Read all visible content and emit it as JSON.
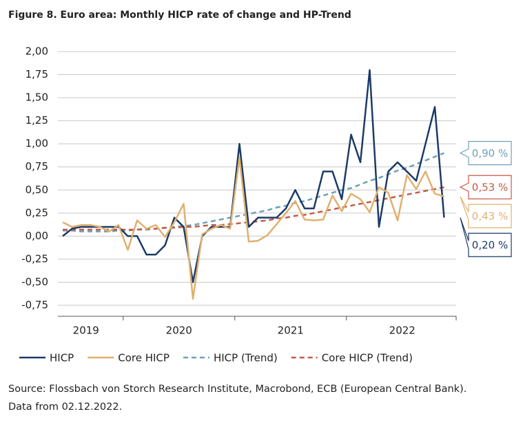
{
  "chart_data": {
    "type": "line",
    "title": "Figure 8. Euro area: Monthly HICP rate of change and HP-Trend",
    "source": "Source: Flossbach von Storch Research Institute, Macrobond, ECB (European Central Bank).",
    "note": "Data from 02.12.2022.",
    "categories": [
      null,
      null,
      null,
      "2019",
      null,
      null,
      null,
      null,
      null,
      null,
      null,
      null,
      null,
      "2020",
      null,
      null,
      null,
      null,
      null,
      null,
      null,
      null,
      null,
      null,
      null,
      "2021",
      null,
      null,
      null,
      null,
      null,
      null,
      null,
      null,
      null,
      null,
      null,
      "2022",
      null,
      null,
      null,
      null
    ],
    "ylim": [
      -0.75,
      2.0
    ],
    "yticks": [
      {
        "value": -0.75,
        "label": "-0,75"
      },
      {
        "value": -0.5,
        "label": "-0,50"
      },
      {
        "value": -0.25,
        "label": "-0,25"
      },
      {
        "value": 0,
        "label": "0,00"
      },
      {
        "value": 0.25,
        "label": "0,25"
      },
      {
        "value": 0.5,
        "label": "0,50"
      },
      {
        "value": 0.75,
        "label": "0,75"
      },
      {
        "value": 1.0,
        "label": "1,00"
      },
      {
        "value": 1.25,
        "label": "1,25"
      },
      {
        "value": 1.5,
        "label": "1,50"
      },
      {
        "value": 1.75,
        "label": "1,75"
      },
      {
        "value": 2.0,
        "label": "2,00"
      }
    ],
    "grid": true,
    "series": [
      {
        "name": "HICP",
        "color": "#1b3a66",
        "dashed": false,
        "end_label": "0,20 %",
        "values": [
          0.0,
          0.08,
          0.1,
          0.1,
          0.1,
          0.1,
          0.1,
          0.0,
          0.0,
          -0.2,
          -0.2,
          -0.1,
          0.2,
          0.1,
          -0.5,
          0.0,
          0.1,
          0.1,
          0.1,
          1.0,
          0.1,
          0.2,
          0.2,
          0.2,
          0.3,
          0.5,
          0.3,
          0.3,
          0.7,
          0.7,
          0.4,
          1.1,
          0.8,
          1.8,
          0.1,
          0.7,
          0.8,
          0.7,
          0.6,
          1.0,
          1.4,
          0.2
        ]
      },
      {
        "name": "Core HICP",
        "color": "#e0b06f",
        "dashed": false,
        "end_label": "0,43 %",
        "values": [
          0.15,
          0.1,
          0.12,
          0.12,
          0.1,
          0.05,
          0.12,
          -0.15,
          0.17,
          0.08,
          0.12,
          -0.01,
          0.15,
          0.35,
          -0.68,
          0.02,
          0.08,
          0.12,
          0.08,
          0.85,
          -0.06,
          -0.05,
          0.01,
          0.13,
          0.25,
          0.38,
          0.18,
          0.17,
          0.18,
          0.44,
          0.27,
          0.46,
          0.4,
          0.26,
          0.53,
          0.47,
          0.17,
          0.66,
          0.51,
          0.7,
          0.46,
          0.43
        ]
      },
      {
        "name": "HICP (Trend)",
        "color": "#6f9fb8",
        "dashed": true,
        "end_label": "0,90 %",
        "values": [
          0.06,
          0.06,
          0.05,
          0.05,
          0.05,
          0.05,
          0.06,
          0.06,
          0.07,
          0.07,
          0.08,
          0.09,
          0.1,
          0.11,
          0.12,
          0.14,
          0.16,
          0.18,
          0.2,
          0.22,
          0.24,
          0.26,
          0.28,
          0.31,
          0.33,
          0.36,
          0.38,
          0.41,
          0.44,
          0.47,
          0.5,
          0.52,
          0.56,
          0.6,
          0.63,
          0.67,
          0.71,
          0.74,
          0.78,
          0.82,
          0.86,
          0.9
        ]
      },
      {
        "name": "Core HICP (Trend)",
        "color": "#c45a45",
        "dashed": true,
        "end_label": "0,53 %",
        "values": [
          0.07,
          0.07,
          0.07,
          0.07,
          0.07,
          0.07,
          0.07,
          0.07,
          0.07,
          0.08,
          0.08,
          0.09,
          0.09,
          0.1,
          0.1,
          0.11,
          0.12,
          0.12,
          0.13,
          0.14,
          0.15,
          0.16,
          0.17,
          0.19,
          0.2,
          0.22,
          0.23,
          0.25,
          0.27,
          0.29,
          0.31,
          0.33,
          0.35,
          0.37,
          0.39,
          0.41,
          0.43,
          0.45,
          0.47,
          0.49,
          0.51,
          0.53
        ]
      }
    ]
  }
}
